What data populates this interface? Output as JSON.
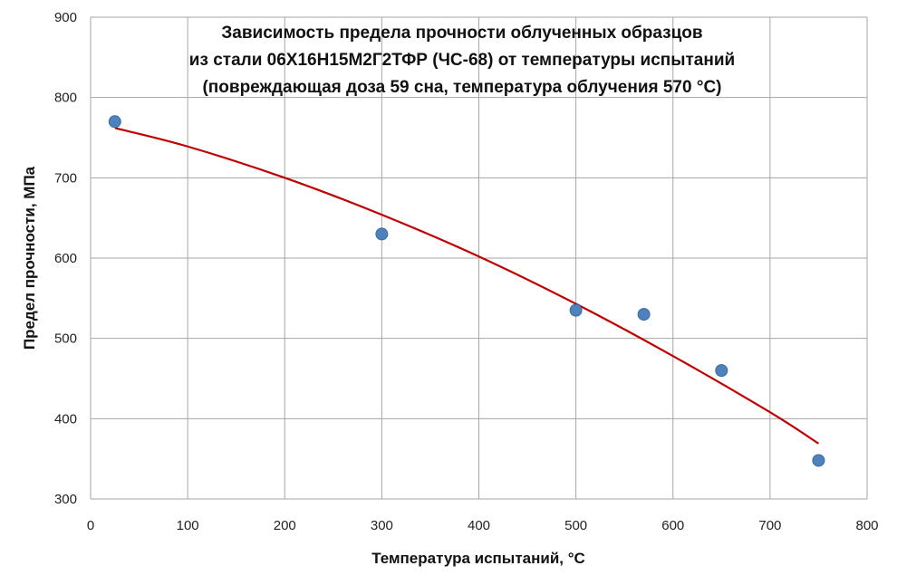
{
  "chart_data": {
    "type": "scatter",
    "title_lines": [
      "Зависимость предела прочности облученных образцов",
      "из стали 06Х16Н15М2Г2ТФР (ЧС-68) от температуры испытаний",
      "(повреждающая доза 59 сна, температура облучения 570 °С)"
    ],
    "xlabel": "Температура испытаний, °С",
    "ylabel": "Предел прочности, МПа",
    "xlim": [
      0,
      800
    ],
    "ylim": [
      300,
      900
    ],
    "x_ticks": [
      "0",
      "100",
      "200",
      "300",
      "400",
      "500",
      "600",
      "700",
      "800"
    ],
    "y_ticks": [
      "300",
      "400",
      "500",
      "600",
      "700",
      "800",
      "900"
    ],
    "grid": true,
    "legend": false,
    "points": [
      {
        "x": 25,
        "y": 770
      },
      {
        "x": 300,
        "y": 630
      },
      {
        "x": 500,
        "y": 535
      },
      {
        "x": 570,
        "y": 530
      },
      {
        "x": 650,
        "y": 460
      },
      {
        "x": 750,
        "y": 348
      }
    ],
    "trendline": {
      "type": "polynomial",
      "points": [
        {
          "x": 25,
          "y": 762
        },
        {
          "x": 100,
          "y": 739
        },
        {
          "x": 200,
          "y": 700
        },
        {
          "x": 300,
          "y": 654
        },
        {
          "x": 400,
          "y": 602
        },
        {
          "x": 500,
          "y": 543
        },
        {
          "x": 600,
          "y": 478
        },
        {
          "x": 700,
          "y": 408
        },
        {
          "x": 750,
          "y": 369
        }
      ]
    },
    "colors": {
      "points": "#4f81bd",
      "trendline": "#c00000",
      "grid": "#a6a6a6"
    }
  }
}
